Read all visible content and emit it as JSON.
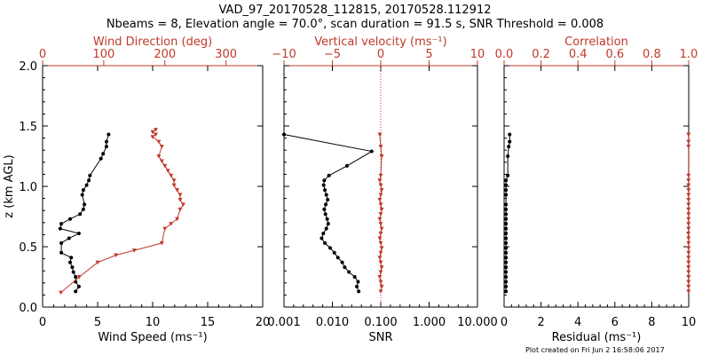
{
  "title_line1": "VAD_97_20170528_112815, 20170528.112912",
  "title_line2": "Nbeams = 8, Elevation angle = 70.0°, scan duration = 91.5 s, SNR Threshold = 0.008",
  "footer": "Plot created on Fri Jun  2 16:58:06 2017",
  "colors": {
    "primary": "#000000",
    "secondary": "#c0392b"
  },
  "chart_data": [
    {
      "type": "line",
      "ylabel": "z (km AGL)",
      "ylim": [
        0,
        2
      ],
      "yticks": [
        "0.0",
        "0.5",
        "1.0",
        "1.5",
        "2.0"
      ],
      "xlabel": "Wind Speed (ms⁻¹)",
      "xlim": [
        0,
        20
      ],
      "xticks": [
        "0",
        "5",
        "10",
        "15",
        "20"
      ],
      "x2label": "Wind Direction (deg)",
      "x2lim": [
        0,
        360
      ],
      "x2ticks": [
        "0",
        "100",
        "200",
        "300"
      ],
      "series": [
        {
          "axis": "bottom",
          "color": "#000000",
          "x": [
            3.0,
            3.3,
            3.0,
            3.0,
            2.8,
            2.7,
            2.5,
            2.6,
            1.7,
            1.7,
            2.4,
            3.3,
            1.6,
            1.7,
            2.5,
            3.4,
            3.7,
            3.8,
            3.6,
            3.7,
            4.0,
            4.2,
            4.3,
            5.3,
            5.5,
            5.8,
            5.8,
            6.0
          ],
          "y": [
            0.13,
            0.17,
            0.21,
            0.25,
            0.29,
            0.33,
            0.37,
            0.41,
            0.45,
            0.53,
            0.57,
            0.61,
            0.65,
            0.69,
            0.73,
            0.77,
            0.81,
            0.85,
            0.93,
            0.97,
            1.01,
            1.05,
            1.09,
            1.23,
            1.27,
            1.33,
            1.37,
            1.43
          ]
        },
        {
          "axis": "top",
          "color": "#c0392b",
          "x": [
            30,
            60,
            90,
            120,
            150,
            195,
            200,
            210,
            220,
            225,
            230,
            225,
            225,
            220,
            215,
            215,
            210,
            205,
            200,
            195,
            190,
            195,
            190,
            180,
            185,
            180,
            185
          ],
          "y": [
            0.12,
            0.25,
            0.37,
            0.43,
            0.47,
            0.53,
            0.65,
            0.69,
            0.73,
            0.81,
            0.85,
            0.89,
            0.93,
            0.97,
            1.01,
            1.05,
            1.09,
            1.13,
            1.17,
            1.21,
            1.25,
            1.33,
            1.37,
            1.41,
            1.43,
            1.45,
            1.47
          ]
        }
      ]
    },
    {
      "type": "line",
      "xlabel": "SNR",
      "xscale": "log",
      "xlim": [
        0.001,
        10
      ],
      "xticks": [
        "0.001",
        "0.010",
        "0.100",
        "1.000",
        "10.000"
      ],
      "x2label": "Vertical velocity (ms⁻¹)",
      "x2lim": [
        -10,
        10
      ],
      "x2ticks": [
        "−10",
        "−5",
        "0",
        "5",
        "10"
      ],
      "zero_line": 0,
      "series": [
        {
          "axis": "bottom",
          "color": "#000000",
          "x": [
            0.035,
            0.032,
            0.034,
            0.029,
            0.022,
            0.018,
            0.016,
            0.013,
            0.011,
            0.009,
            0.007,
            0.006,
            0.0065,
            0.0075,
            0.0082,
            0.0078,
            0.0072,
            0.0068,
            0.0073,
            0.008,
            0.0075,
            0.007,
            0.0066,
            0.0068,
            0.0085,
            0.02,
            0.065,
            0.001
          ],
          "y": [
            0.13,
            0.17,
            0.21,
            0.25,
            0.29,
            0.33,
            0.37,
            0.41,
            0.45,
            0.49,
            0.53,
            0.57,
            0.61,
            0.65,
            0.69,
            0.73,
            0.77,
            0.81,
            0.85,
            0.89,
            0.93,
            0.97,
            1.01,
            1.05,
            1.09,
            1.17,
            1.29,
            1.43
          ]
        },
        {
          "axis": "top",
          "color": "#c0392b",
          "x": [
            0.0,
            0.1,
            0.0,
            -0.1,
            0.0,
            0.1,
            0.0,
            -0.1,
            0.0,
            0.1,
            0.0,
            -0.1,
            0.0,
            0.1,
            0.0,
            -0.1,
            0.0,
            0.1,
            0.0,
            -0.1,
            0.0,
            0.1,
            0.0,
            -0.1,
            0.0,
            0.1,
            0.0,
            -0.1
          ],
          "y": [
            0.13,
            0.17,
            0.21,
            0.25,
            0.29,
            0.33,
            0.37,
            0.41,
            0.45,
            0.49,
            0.53,
            0.57,
            0.61,
            0.65,
            0.69,
            0.73,
            0.77,
            0.81,
            0.85,
            0.89,
            0.93,
            0.97,
            1.01,
            1.05,
            1.09,
            1.25,
            1.33,
            1.43
          ]
        }
      ]
    },
    {
      "type": "line",
      "xlabel": "Residual (ms⁻¹)",
      "xlim": [
        0,
        10
      ],
      "xticks": [
        "0",
        "2",
        "4",
        "6",
        "8",
        "10"
      ],
      "x2label": "Correlation",
      "x2lim": [
        0,
        1
      ],
      "x2ticks": [
        "0.0",
        "0.2",
        "0.4",
        "0.6",
        "0.8",
        "1.0"
      ],
      "series": [
        {
          "axis": "bottom",
          "color": "#000000",
          "x": [
            0.1,
            0.1,
            0.1,
            0.1,
            0.1,
            0.1,
            0.1,
            0.1,
            0.1,
            0.1,
            0.1,
            0.1,
            0.1,
            0.1,
            0.1,
            0.1,
            0.1,
            0.1,
            0.1,
            0.1,
            0.1,
            0.1,
            0.1,
            0.2,
            0.2,
            0.25,
            0.3,
            0.3
          ],
          "y": [
            0.13,
            0.17,
            0.21,
            0.25,
            0.29,
            0.33,
            0.37,
            0.41,
            0.45,
            0.49,
            0.53,
            0.57,
            0.61,
            0.65,
            0.69,
            0.73,
            0.77,
            0.81,
            0.85,
            0.93,
            0.97,
            1.01,
            1.05,
            1.09,
            1.25,
            1.33,
            1.37,
            1.43
          ]
        },
        {
          "axis": "top",
          "color": "#c0392b",
          "x": [
            0.999,
            0.999,
            0.999,
            0.999,
            0.999,
            0.999,
            0.999,
            0.999,
            0.999,
            0.999,
            0.999,
            0.999,
            0.998,
            0.999,
            0.999,
            0.999,
            0.999,
            0.999,
            0.999,
            0.999,
            0.999,
            0.999,
            0.999,
            0.999,
            0.999,
            0.999,
            0.999,
            0.999
          ],
          "y": [
            0.13,
            0.17,
            0.21,
            0.25,
            0.29,
            0.33,
            0.37,
            0.41,
            0.45,
            0.49,
            0.53,
            0.57,
            0.61,
            0.65,
            0.69,
            0.73,
            0.77,
            0.81,
            0.85,
            0.89,
            0.93,
            0.97,
            1.01,
            1.05,
            1.09,
            1.33,
            1.37,
            1.43
          ]
        }
      ]
    }
  ]
}
